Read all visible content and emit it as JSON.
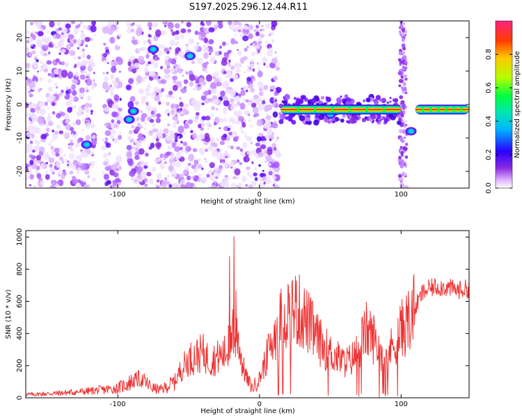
{
  "title": "S197.2025.296.12.44.R11",
  "colors": {
    "snr_line": "#ee3333",
    "spectrogram_dot": "#8a2be2",
    "colormap": [
      "#e6e6fa",
      "#c8a0ff",
      "#8a2be2",
      "#3a00ff",
      "#00c0ff",
      "#00e080",
      "#b0ff00",
      "#ffc000",
      "#ff4000",
      "#ff2a8a"
    ]
  },
  "chart_data": [
    {
      "type": "heatmap",
      "title": "S197.2025.296.12.44.R11",
      "xlabel": "Height of straight line (km)",
      "ylabel": "Frequency (Hz)",
      "xlim": [
        -165,
        148
      ],
      "ylim": [
        -25,
        25
      ],
      "x_ticks": [
        "-100",
        "0",
        "100"
      ],
      "x_tick_values": [
        -100,
        0,
        100
      ],
      "y_ticks": [
        "20",
        "10",
        "0",
        "-10",
        "-20"
      ],
      "y_tick_values": [
        20,
        10,
        0,
        -10,
        -20
      ],
      "grid": false,
      "colorbar": {
        "label": "Normalized spectral amplitude",
        "range": [
          0,
          1
        ],
        "ticks": [
          "0.0",
          "0.2",
          "0.4",
          "0.6",
          "0.8"
        ],
        "tick_values": [
          0.0,
          0.2,
          0.4,
          0.6,
          0.8
        ]
      },
      "ridge": {
        "frequency_hz": -1.5,
        "x_ranges": [
          [
            15,
            100
          ],
          [
            110,
            148
          ]
        ],
        "amplitude": 0.95
      },
      "hot_spots": [
        {
          "x": -122,
          "y": -12,
          "amplitude": 0.35
        },
        {
          "x": -89,
          "y": -2,
          "amplitude": 0.4
        },
        {
          "x": -75,
          "y": 16.5,
          "amplitude": 0.35
        },
        {
          "x": -49,
          "y": 14.5,
          "amplitude": 0.3
        },
        {
          "x": -92,
          "y": -4.5,
          "amplitude": 0.3
        },
        {
          "x": 107,
          "y": -8,
          "amplitude": 0.3
        },
        {
          "x": 50,
          "y": -3,
          "amplitude": 0.3
        }
      ]
    },
    {
      "type": "line",
      "xlabel": "Height of straight line (km)",
      "ylabel": "SNR (10 * v/v)",
      "xlim": [
        -165,
        148
      ],
      "ylim": [
        0,
        1040
      ],
      "x_ticks": [
        "-100",
        "0",
        "100"
      ],
      "x_tick_values": [
        -100,
        0,
        100
      ],
      "y_ticks": [
        "1000",
        "800",
        "600",
        "400",
        "200",
        "0"
      ],
      "y_tick_values": [
        1000,
        800,
        600,
        400,
        200,
        0
      ],
      "grid": false,
      "series": [
        {
          "x": [
            -165,
            -150,
            -130,
            -110,
            -100,
            -95,
            -90,
            -85,
            -80,
            -75,
            -70,
            -65,
            -60,
            -55,
            -50,
            -45,
            -40,
            -35,
            -30,
            -25,
            -20,
            -18,
            -15,
            -12,
            -8,
            -5,
            0,
            5,
            10,
            15,
            20,
            25,
            30,
            35,
            40,
            45,
            50,
            55,
            60,
            65,
            70,
            75,
            80,
            85,
            90,
            95,
            100,
            105,
            110,
            115,
            120,
            125,
            130,
            135,
            140,
            148
          ],
          "y": [
            20,
            25,
            35,
            50,
            60,
            80,
            100,
            120,
            90,
            60,
            50,
            70,
            100,
            180,
            240,
            260,
            280,
            230,
            250,
            270,
            320,
            420,
            380,
            200,
            100,
            60,
            120,
            250,
            380,
            480,
            540,
            560,
            520,
            460,
            380,
            320,
            280,
            250,
            220,
            240,
            300,
            420,
            380,
            300,
            260,
            340,
            420,
            480,
            560,
            650,
            680,
            690,
            690,
            680,
            670,
            680
          ]
        }
      ]
    }
  ]
}
